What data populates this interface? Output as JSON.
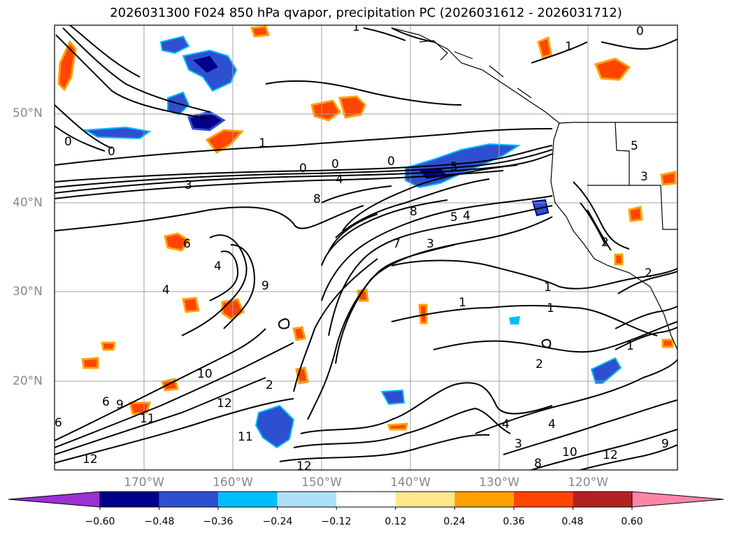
{
  "title": "2026031300 F024 850 hPa qvapor, precipitation PC (2026031612 - 2026031712)",
  "map": {
    "lat_labels": [
      "50°N",
      "40°N",
      "30°N",
      "20°N"
    ],
    "lon_labels": [
      "170°W",
      "160°W",
      "150°W",
      "140°W",
      "130°W",
      "120°W"
    ]
  },
  "colorbar": {
    "tick_labels": [
      "−0.60",
      "−0.48",
      "−0.36",
      "−0.24",
      "−0.12",
      "0.12",
      "0.24",
      "0.36",
      "0.48",
      "0.60"
    ],
    "colors": [
      "#9b30d4",
      "#00008b",
      "#2e50d0",
      "#00bfff",
      "#aee0f8",
      "#ffffff",
      "#ffe88a",
      "#ffa200",
      "#ff4500",
      "#b22222",
      "#ff85a8"
    ]
  },
  "contour_labels": [
    "1",
    "1",
    "0",
    "0",
    "0",
    "1",
    "3",
    "0",
    "0",
    "0",
    "4",
    "5",
    "8",
    "8",
    "5",
    "4",
    "7",
    "3",
    "5",
    "6",
    "4",
    "3",
    "4",
    "9",
    "1",
    "1",
    "1",
    "2",
    "1",
    "2",
    "2",
    "10",
    "12",
    "6",
    "9",
    "11",
    "11",
    "12",
    "12",
    "6",
    "4",
    "4",
    "3",
    "8",
    "10",
    "12",
    "9",
    "2"
  ]
}
